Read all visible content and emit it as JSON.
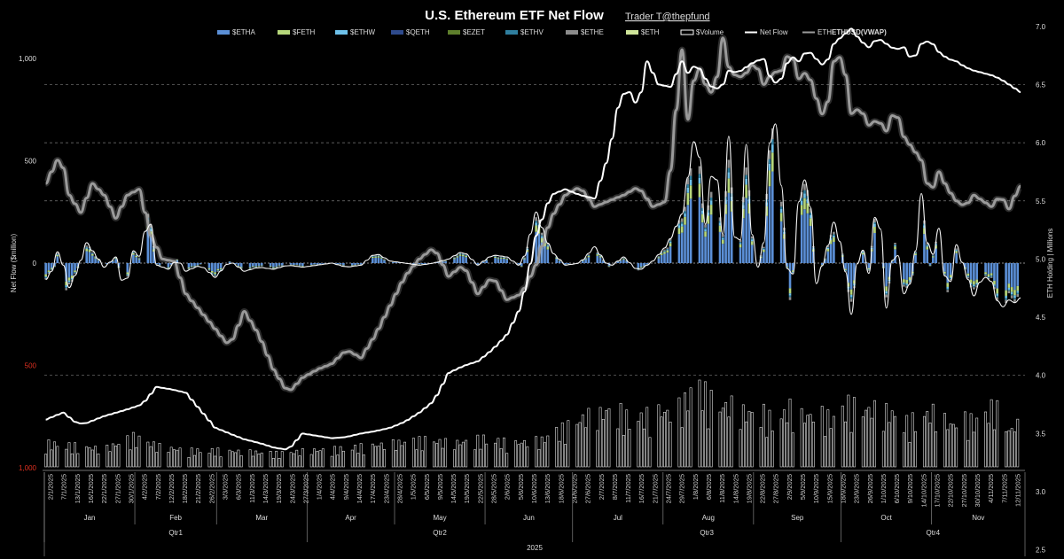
{
  "chart_data": {
    "type": "bar",
    "title": "U.S. Ethereum ETF Net Flow",
    "author": "Trader T@thepfund",
    "ylabel_left": "Net Flow ($million)",
    "ylabel_right": "ETH Holding | Millions",
    "left_ticks": [
      {
        "label": "1,000",
        "value": 1000,
        "red": false
      },
      {
        "label": "500",
        "value": 500,
        "red": false
      },
      {
        "label": "0",
        "value": 0,
        "red": false
      },
      {
        "label": "500",
        "value": -500,
        "red": true
      },
      {
        "label": "1,000",
        "value": -1000,
        "red": true
      }
    ],
    "ylim_left": [
      -1000,
      1150
    ],
    "ylim_right": [
      2.5,
      7.0
    ],
    "right_ticks": [
      "2.5",
      "3.0",
      "3.5",
      "4.0",
      "4.5",
      "5.0",
      "5.5",
      "6.0",
      "6.5",
      "7.0"
    ],
    "grid": "dashed horizontal",
    "legend": [
      {
        "name": "$ETHA",
        "color": "#5b8fd6",
        "kind": "bar"
      },
      {
        "name": "$FETH",
        "color": "#b6d77a",
        "kind": "bar"
      },
      {
        "name": "$ETHW",
        "color": "#6ec1ea",
        "kind": "bar"
      },
      {
        "name": "$QETH",
        "color": "#2e4a8c",
        "kind": "bar"
      },
      {
        "name": "$EZET",
        "color": "#5e7f2c",
        "kind": "bar"
      },
      {
        "name": "$ETHV",
        "color": "#2f7f9f",
        "kind": "bar"
      },
      {
        "name": "$ETHE",
        "color": "#8c8c8c",
        "kind": "bar"
      },
      {
        "name": "$ETH",
        "color": "#cfe59a",
        "kind": "bar"
      },
      {
        "name": "$Volume",
        "color": "#000000",
        "kind": "outline"
      },
      {
        "name": "Net Flow",
        "color": "#ffffff",
        "kind": "line"
      },
      {
        "name": "ETH",
        "color": "#9a9a9a",
        "kind": "line"
      },
      {
        "name": "ETHUSD(VWAP)",
        "color": "#ffffff",
        "kind": "bold-text"
      }
    ],
    "dates": [
      "2/1/2025",
      "7/1/2025",
      "13/1/2025",
      "16/1/2025",
      "22/1/2025",
      "27/1/2025",
      "30/1/2025",
      "4/2/2025",
      "7/2/2025",
      "12/2/2025",
      "18/2/2025",
      "21/2/2025",
      "26/2/2025",
      "3/3/2025",
      "6/3/2025",
      "11/3/2025",
      "14/3/2025",
      "19/3/2025",
      "24/3/2025",
      "27/3/2025",
      "1/4/2025",
      "4/4/2025",
      "9/4/2025",
      "14/4/2025",
      "17/4/2025",
      "23/4/2025",
      "28/4/2025",
      "1/5/2025",
      "6/5/2025",
      "9/5/2025",
      "14/5/2025",
      "19/5/2025",
      "22/5/2025",
      "28/5/2025",
      "2/6/2025",
      "5/6/2025",
      "10/6/2025",
      "13/6/2025",
      "18/6/2025",
      "24/6/2025",
      "27/6/2025",
      "2/7/2025",
      "8/7/2025",
      "11/7/2025",
      "16/7/2025",
      "21/7/2025",
      "24/7/2025",
      "29/7/2025",
      "1/8/2025",
      "6/8/2025",
      "11/8/2025",
      "14/8/2025",
      "19/8/2025",
      "22/8/2025",
      "27/8/2025",
      "2/9/2025",
      "5/9/2025",
      "10/9/2025",
      "15/9/2025",
      "18/9/2025",
      "23/9/2025",
      "26/9/2025",
      "1/10/2025",
      "6/10/2025",
      "9/10/2025",
      "14/10/2025",
      "17/10/2025",
      "22/10/2025",
      "27/10/2025",
      "30/10/2025",
      "4/11/2025",
      "7/11/2025",
      "12/11/2025"
    ],
    "months": [
      "Jan",
      "Feb",
      "Mar",
      "Apr",
      "May",
      "Jun",
      "Jul",
      "Aug",
      "Sep",
      "Oct",
      "Nov"
    ],
    "quarters": [
      "Qtr1",
      "Qtr2",
      "Qtr3",
      "Qtr4"
    ],
    "year": "2025",
    "net_flow_keyframes": {
      "x": [
        0,
        3,
        5,
        7,
        9,
        11,
        14,
        17,
        20,
        24,
        27,
        30,
        33,
        35,
        38,
        42,
        45,
        48,
        53,
        58,
        63,
        68,
        73,
        78,
        83,
        88,
        93,
        98,
        103,
        108,
        113,
        118,
        123,
        128,
        133,
        138,
        143,
        148,
        153,
        158,
        163,
        168,
        173,
        178,
        183,
        188,
        193,
        198,
        203,
        208,
        213,
        218,
        220,
        223,
        226,
        229,
        232,
        234,
        237,
        240,
        243,
        246,
        249,
        252,
        255,
        258,
        261,
        264,
        267,
        270,
        273,
        276,
        279,
        282,
        285,
        288,
        291,
        294,
        297,
        300,
        303,
        306,
        309,
        312,
        315,
        318,
        321,
        324,
        327,
        330,
        333,
        335
      ],
      "y": [
        -80,
        -20,
        130,
        -150,
        -90,
        -30,
        100,
        40,
        -20,
        30,
        -140,
        60,
        20,
        290,
        -10,
        -30,
        20,
        -40,
        -10,
        -70,
        10,
        -40,
        -20,
        -30,
        -10,
        -20,
        -10,
        0,
        -20,
        -10,
        50,
        10,
        0,
        -10,
        0,
        20,
        60,
        -10,
        40,
        30,
        -20,
        250,
        60,
        -10,
        0,
        80,
        -20,
        30,
        -40,
        10,
        90,
        240,
        420,
        680,
        190,
        540,
        140,
        620,
        -120,
        580,
        -80,
        100,
        830,
        380,
        -230,
        300,
        460,
        -100,
        30,
        200,
        60,
        -250,
        120,
        -50,
        360,
        -220,
        130,
        -150,
        -80,
        340,
        -20,
        170,
        -180,
        90,
        -40,
        -160,
        -60,
        -90,
        -230,
        -180,
        -200,
        -140
      ]
    },
    "eth_holding_keyframes": {
      "x": [
        0,
        6,
        10,
        13,
        20,
        27,
        33,
        38,
        43,
        48,
        53,
        58,
        63,
        68,
        73,
        78,
        83,
        88,
        93,
        98,
        103,
        108,
        113,
        118,
        123,
        128,
        133,
        138,
        143,
        148,
        153,
        158,
        163,
        168,
        173,
        178,
        183,
        188,
        193,
        196,
        199,
        203,
        206,
        210,
        214,
        218,
        220,
        223,
        226,
        229,
        232,
        234,
        237,
        240,
        243,
        246,
        249,
        252,
        255,
        258,
        261,
        264,
        267,
        270,
        273,
        276,
        279,
        282,
        285,
        288,
        291,
        294,
        297,
        300,
        303,
        306,
        309,
        312,
        315,
        318,
        321,
        324,
        327,
        330,
        333,
        335
      ],
      "y": [
        3.62,
        3.68,
        3.6,
        3.58,
        3.65,
        3.7,
        3.75,
        3.9,
        3.88,
        3.85,
        3.7,
        3.55,
        3.5,
        3.45,
        3.42,
        3.38,
        3.36,
        3.5,
        3.48,
        3.46,
        3.47,
        3.5,
        3.52,
        3.55,
        3.6,
        3.68,
        3.78,
        4.02,
        4.08,
        4.12,
        4.22,
        4.35,
        4.6,
        5.2,
        5.55,
        5.6,
        5.55,
        5.52,
        5.9,
        6.3,
        6.48,
        6.3,
        6.7,
        6.5,
        6.48,
        6.7,
        6.6,
        6.68,
        6.55,
        6.45,
        6.5,
        6.62,
        6.6,
        6.65,
        6.7,
        6.72,
        6.5,
        6.55,
        6.75,
        6.7,
        6.8,
        6.72,
        6.65,
        6.85,
        6.92,
        6.98,
        6.88,
        6.82,
        6.9,
        6.85,
        6.8,
        6.82,
        6.7,
        6.85,
        6.88,
        6.78,
        6.72,
        6.7,
        6.65,
        6.62,
        6.6,
        6.58,
        6.55,
        6.5,
        6.45,
        6.42
      ]
    },
    "eth_price_keyframes": {
      "x": [
        0,
        5,
        8,
        12,
        16,
        20,
        24,
        28,
        32,
        36,
        40,
        44,
        48,
        53,
        58,
        63,
        68,
        73,
        78,
        83,
        88,
        93,
        98,
        103,
        108,
        113,
        118,
        123,
        128,
        133,
        138,
        143,
        148,
        153,
        158,
        163,
        168,
        173,
        178,
        183,
        188,
        193,
        198,
        203,
        208,
        213,
        218,
        220,
        223,
        226,
        229,
        232,
        234,
        237,
        240,
        243,
        246,
        249,
        252,
        255,
        258,
        261,
        264,
        267,
        270,
        273,
        276,
        279,
        282,
        285,
        288,
        291,
        294,
        297,
        300,
        303,
        306,
        309,
        312,
        315,
        318,
        321,
        324,
        327,
        330,
        333,
        335
      ],
      "y": [
        5.65,
        5.9,
        5.55,
        5.4,
        5.65,
        5.55,
        5.35,
        5.55,
        5.6,
        5.2,
        5.0,
        4.98,
        4.7,
        4.55,
        4.4,
        4.25,
        4.55,
        4.35,
        4.05,
        3.85,
        3.98,
        4.05,
        4.1,
        4.22,
        4.15,
        4.35,
        4.6,
        4.85,
        5.0,
        5.1,
        4.85,
        4.95,
        4.7,
        4.85,
        4.65,
        4.7,
        4.95,
        5.35,
        5.55,
        5.62,
        5.45,
        5.5,
        5.55,
        5.62,
        5.45,
        5.5,
        6.8,
        6.2,
        6.7,
        6.5,
        6.4,
        6.9,
        6.65,
        6.55,
        6.6,
        6.7,
        6.5,
        6.6,
        6.62,
        6.8,
        6.55,
        6.62,
        6.38,
        6.18,
        6.7,
        6.75,
        6.25,
        6.3,
        6.15,
        6.2,
        6.1,
        6.3,
        6.05,
        5.95,
        5.85,
        5.55,
        5.75,
        5.6,
        5.5,
        5.45,
        5.55,
        5.5,
        5.45,
        5.55,
        5.43,
        5.6,
        5.65
      ]
    },
    "volume_keyframes": {
      "x": [
        0,
        10,
        20,
        30,
        40,
        50,
        60,
        70,
        80,
        90,
        100,
        110,
        120,
        130,
        140,
        150,
        160,
        170,
        175,
        180,
        185,
        190,
        195,
        200,
        205,
        210,
        215,
        220,
        222,
        225,
        230,
        235,
        240,
        245,
        250,
        255,
        260,
        265,
        270,
        275,
        280,
        285,
        290,
        295,
        300,
        305,
        310,
        315,
        320,
        325,
        330,
        335
      ],
      "y": [
        80,
        70,
        60,
        100,
        65,
        55,
        55,
        50,
        45,
        55,
        60,
        70,
        80,
        90,
        80,
        95,
        80,
        90,
        120,
        140,
        170,
        180,
        200,
        160,
        170,
        190,
        180,
        230,
        280,
        260,
        200,
        210,
        180,
        190,
        150,
        200,
        170,
        180,
        160,
        210,
        190,
        200,
        180,
        150,
        170,
        190,
        140,
        160,
        150,
        210,
        120,
        160
      ]
    }
  }
}
